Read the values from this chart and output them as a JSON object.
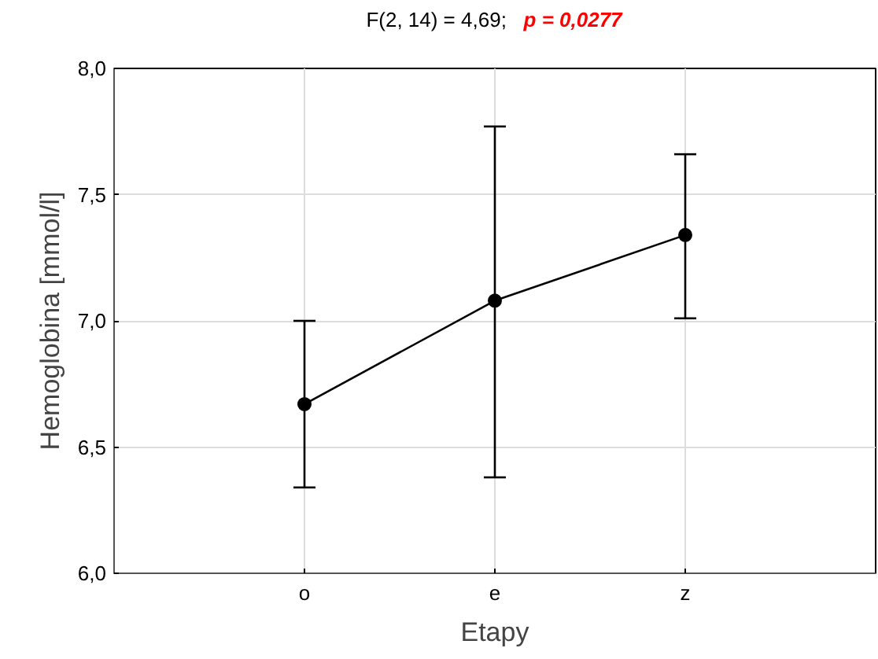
{
  "chart_data": {
    "type": "line",
    "title": "F(2, 14) = 4,69;  p = 0,0277",
    "xlabel": "Etapy",
    "ylabel": "Hemoglobina [mmol/l]",
    "categories": [
      "o",
      "e",
      "z"
    ],
    "series": [
      {
        "color": "#000000",
        "values": [
          6.67,
          7.08,
          7.34
        ],
        "errors": [
          [
            6.34,
            7.0
          ],
          [
            6.38,
            7.77
          ],
          [
            7.01,
            7.66
          ]
        ]
      }
    ],
    "ylim": [
      6.0,
      8.0
    ],
    "yticks": [
      {
        "value": 6.0,
        "label": "6,0"
      },
      {
        "value": 6.5,
        "label": "6,5"
      },
      {
        "value": 7.0,
        "label": "7,0"
      },
      {
        "value": 7.5,
        "label": "7,5"
      },
      {
        "value": 8.0,
        "label": "8,0"
      }
    ],
    "grid": true,
    "marker": "circle",
    "line_style": "solid"
  }
}
